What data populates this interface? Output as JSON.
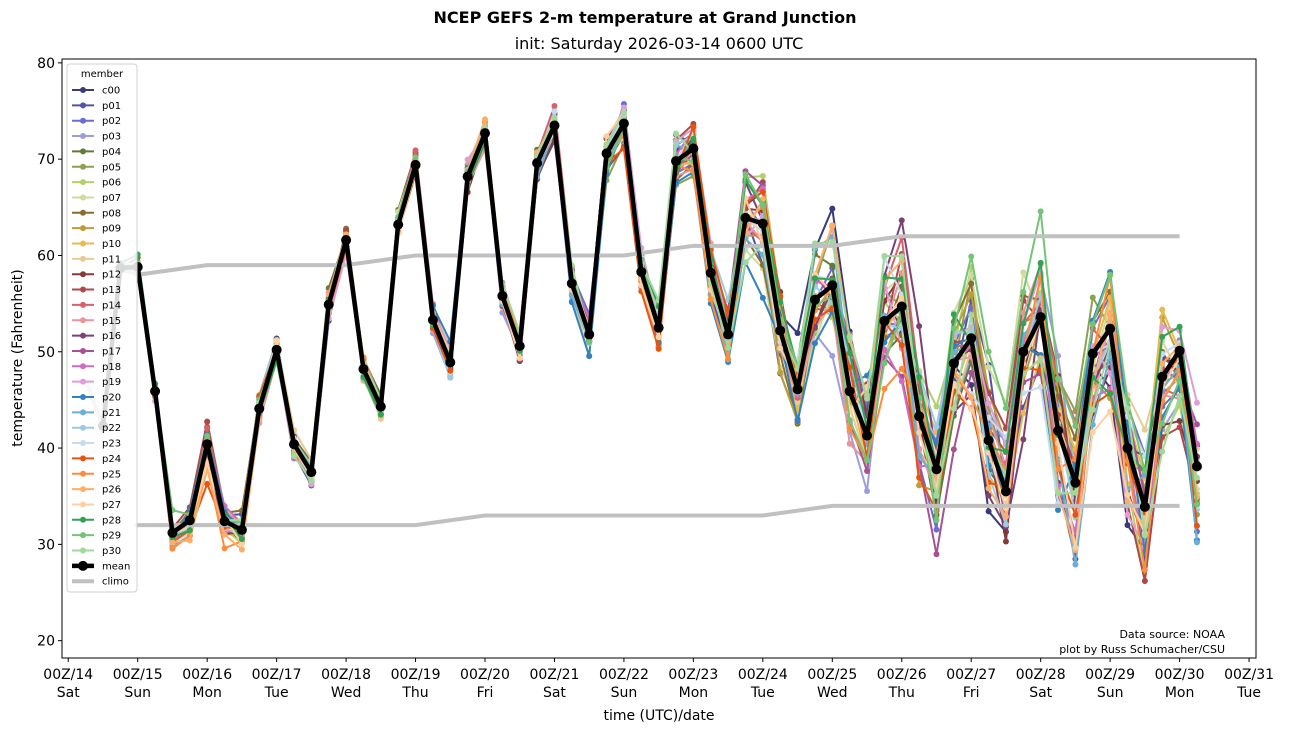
{
  "chart_data": {
    "type": "line",
    "title": "NCEP GEFS 2-m temperature at Grand Junction",
    "subtitle": "init: Saturday 2026-03-14 0600 UTC",
    "xlabel": "time (UTC)/date",
    "ylabel": "temperature (Fahrenheit)",
    "ylim": [
      18.2,
      80.4
    ],
    "xlim_days": [
      13.91,
      31.1
    ],
    "grid": false,
    "legend": {
      "title": "member",
      "placement": "top-left"
    },
    "yticks": [
      20,
      30,
      40,
      50,
      60,
      70,
      80
    ],
    "xticks": [
      {
        "day": 14,
        "label": "00Z/14",
        "dow": "Sat"
      },
      {
        "day": 15,
        "label": "00Z/15",
        "dow": "Sun"
      },
      {
        "day": 16,
        "label": "00Z/16",
        "dow": "Mon"
      },
      {
        "day": 17,
        "label": "00Z/17",
        "dow": "Tue"
      },
      {
        "day": 18,
        "label": "00Z/18",
        "dow": "Wed"
      },
      {
        "day": 19,
        "label": "00Z/19",
        "dow": "Thu"
      },
      {
        "day": 20,
        "label": "00Z/20",
        "dow": "Fri"
      },
      {
        "day": 21,
        "label": "00Z/21",
        "dow": "Sat"
      },
      {
        "day": 22,
        "label": "00Z/22",
        "dow": "Sun"
      },
      {
        "day": 23,
        "label": "00Z/23",
        "dow": "Mon"
      },
      {
        "day": 24,
        "label": "00Z/24",
        "dow": "Tue"
      },
      {
        "day": 25,
        "label": "00Z/25",
        "dow": "Wed"
      },
      {
        "day": 26,
        "label": "00Z/26",
        "dow": "Thu"
      },
      {
        "day": 27,
        "label": "00Z/27",
        "dow": "Fri"
      },
      {
        "day": 28,
        "label": "00Z/28",
        "dow": "Sat"
      },
      {
        "day": 29,
        "label": "00Z/29",
        "dow": "Sun"
      },
      {
        "day": 30,
        "label": "00Z/30",
        "dow": "Mon"
      },
      {
        "day": 31,
        "label": "00Z/31",
        "dow": "Tue"
      }
    ],
    "time_start_day": 14.5,
    "time_step_hours": 6,
    "mean": {
      "name": "mean",
      "color": "#000000",
      "values": [
        42.3,
        58.7,
        58.8,
        45.9,
        31.2,
        32.5,
        40.4,
        32.4,
        31.5,
        44.1,
        50.2,
        40.4,
        37.5,
        54.9,
        61.6,
        48.2,
        44.3,
        63.2,
        69.4,
        53.3,
        48.9,
        68.2,
        72.7,
        55.8,
        50.6,
        69.6,
        73.5,
        57.1,
        51.8,
        70.6,
        73.7,
        58.3,
        52.5,
        69.8,
        71.1,
        58.2,
        51.8,
        63.9,
        63.3,
        52.2,
        46.1,
        55.4,
        56.9,
        45.9,
        41.3,
        53.2,
        54.7,
        43.3,
        37.8,
        48.8,
        51.4,
        40.8,
        35.5,
        50.0,
        53.6,
        41.8,
        36.4,
        49.8,
        52.4,
        40.0,
        33.9,
        47.4,
        50.1,
        38.1
      ]
    },
    "spread": [
      0.5,
      0.6,
      1.0,
      0.8,
      2.0,
      1.6,
      2.8,
      1.8,
      1.9,
      1.6,
      1.2,
      1.3,
      1.1,
      1.3,
      1.3,
      1.3,
      1.3,
      1.3,
      1.3,
      1.5,
      1.7,
      1.5,
      1.3,
      1.4,
      1.5,
      1.8,
      1.8,
      1.7,
      1.7,
      2.1,
      2.2,
      2.3,
      2.4,
      2.7,
      2.5,
      2.8,
      3.1,
      4.6,
      4.8,
      4.5,
      4.8,
      6.0,
      6.3,
      6.3,
      6.6,
      6.8,
      7.2,
      7.0,
      6.6,
      6.4,
      7.5,
      7.6,
      7.4,
      7.4,
      7.6,
      7.6,
      7.8,
      7.4,
      7.8,
      7.6,
      7.3,
      7.5,
      7.8,
      7.2
    ],
    "climo": {
      "name": "climo",
      "color": "#c0c0c0",
      "segments": [
        {
          "days": [
            14.25,
            14.5
          ],
          "values": [
            47,
            42.3
          ]
        },
        {
          "days": [
            15,
            16,
            17,
            18,
            19,
            20,
            21,
            22,
            23,
            24,
            25,
            26,
            27,
            28,
            29,
            30
          ],
          "values": [
            58,
            59,
            59,
            59,
            60,
            60,
            60,
            60,
            61,
            61,
            61,
            62,
            62,
            62,
            62,
            62
          ]
        },
        {
          "days": [
            14.95,
            16,
            17,
            18,
            19,
            20,
            21,
            22,
            23,
            24,
            25,
            26,
            27,
            28,
            29,
            30
          ],
          "values": [
            32,
            32,
            32,
            32,
            32,
            33,
            33,
            33,
            33,
            33,
            34,
            34,
            34,
            34,
            34,
            34
          ]
        }
      ]
    },
    "members": [
      {
        "name": "c00",
        "color": "#393b79",
        "seed": 1
      },
      {
        "name": "p01",
        "color": "#5254a3",
        "seed": 2
      },
      {
        "name": "p02",
        "color": "#6b6ecf",
        "seed": 3
      },
      {
        "name": "p03",
        "color": "#9c9ede",
        "seed": 4
      },
      {
        "name": "p04",
        "color": "#637939",
        "seed": 5
      },
      {
        "name": "p05",
        "color": "#8ca252",
        "seed": 6
      },
      {
        "name": "p06",
        "color": "#b5cf6b",
        "seed": 7
      },
      {
        "name": "p07",
        "color": "#cedb9c",
        "seed": 8
      },
      {
        "name": "p08",
        "color": "#8c6d31",
        "seed": 9
      },
      {
        "name": "p09",
        "color": "#bd9e39",
        "seed": 10
      },
      {
        "name": "p10",
        "color": "#e7ba52",
        "seed": 11
      },
      {
        "name": "p11",
        "color": "#e7cb94",
        "seed": 12
      },
      {
        "name": "p12",
        "color": "#843c39",
        "seed": 13
      },
      {
        "name": "p13",
        "color": "#ad494a",
        "seed": 14
      },
      {
        "name": "p14",
        "color": "#d6616b",
        "seed": 15
      },
      {
        "name": "p15",
        "color": "#e7969c",
        "seed": 16
      },
      {
        "name": "p16",
        "color": "#7b4173",
        "seed": 17
      },
      {
        "name": "p17",
        "color": "#a55194",
        "seed": 18
      },
      {
        "name": "p18",
        "color": "#ce6dbd",
        "seed": 19
      },
      {
        "name": "p19",
        "color": "#de9ed6",
        "seed": 20
      },
      {
        "name": "p20",
        "color": "#3182bd",
        "seed": 21
      },
      {
        "name": "p21",
        "color": "#6baed6",
        "seed": 22
      },
      {
        "name": "p22",
        "color": "#9ecae1",
        "seed": 23
      },
      {
        "name": "p23",
        "color": "#c6dbef",
        "seed": 24
      },
      {
        "name": "p24",
        "color": "#e6550d",
        "seed": 25
      },
      {
        "name": "p25",
        "color": "#fd8d3c",
        "seed": 26
      },
      {
        "name": "p26",
        "color": "#fdae6b",
        "seed": 27
      },
      {
        "name": "p27",
        "color": "#fdd0a2",
        "seed": 28
      },
      {
        "name": "p28",
        "color": "#31a354",
        "seed": 29
      },
      {
        "name": "p29",
        "color": "#74c476",
        "seed": 30
      },
      {
        "name": "p30",
        "color": "#a1d99b",
        "seed": 31
      }
    ],
    "annotations": [
      "Data source: NOAA",
      "plot by Russ Schumacher/CSU"
    ]
  }
}
